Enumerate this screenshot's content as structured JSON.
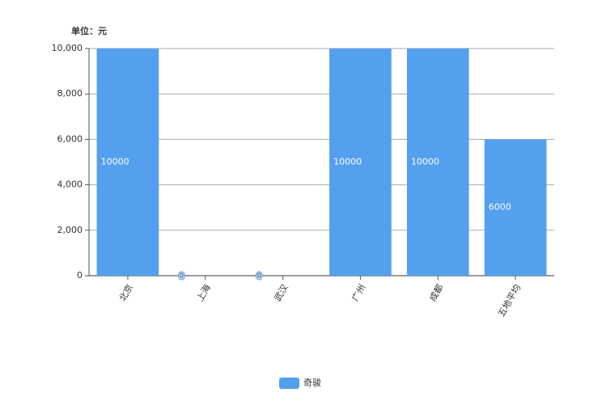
{
  "chart_data": {
    "type": "bar",
    "y_unit_label": "单位：元",
    "categories": [
      "北京",
      "上海",
      "武汉",
      "广州",
      "成都",
      "五地平均"
    ],
    "series": [
      {
        "name": "奇骏",
        "color": "#559fef",
        "values": [
          10000,
          0,
          0,
          10000,
          10000,
          6000
        ]
      }
    ],
    "ylim": [
      0,
      10000
    ],
    "yticks": [
      0,
      {
        "value": 2000,
        "label": "2,000"
      },
      {
        "value": 4000,
        "label": "4,000"
      },
      {
        "value": 6000,
        "label": "6,000"
      },
      {
        "value": 8000,
        "label": "8,000"
      },
      {
        "value": 10000,
        "label": "10,000"
      }
    ],
    "grid": true,
    "legend": "bottom"
  }
}
